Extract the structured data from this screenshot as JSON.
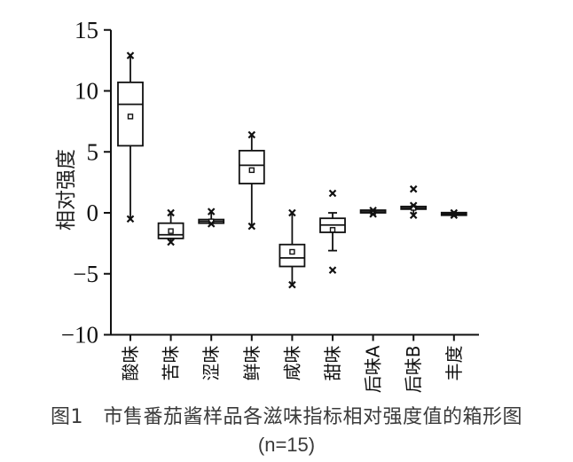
{
  "chart_data": {
    "type": "boxplot",
    "title": "",
    "xlabel": "",
    "ylabel": "相对强度",
    "ylim": [
      -10,
      15
    ],
    "yticks": [
      -10,
      -5,
      0,
      5,
      10,
      15
    ],
    "ytick_labels": [
      "−10",
      "−5",
      "0",
      "5",
      "10",
      "15"
    ],
    "grid": false,
    "legend": null,
    "categories": [
      "酸味",
      "苦味",
      "涩味",
      "鲜味",
      "咸味",
      "甜味",
      "后味A",
      "后味B",
      "丰度"
    ],
    "series": [
      {
        "name": "酸味",
        "whisker_low": -0.5,
        "q1": 5.5,
        "median": 8.9,
        "q3": 10.7,
        "whisker_high": 12.9,
        "mean": 7.9,
        "outliers": [],
        "whisker_markers": [
          "x",
          "x"
        ]
      },
      {
        "name": "苦味",
        "whisker_low": -2.4,
        "q1": -2.1,
        "median": -1.8,
        "q3": -0.85,
        "whisker_high": 0.0,
        "mean": -1.5,
        "outliers": [],
        "whisker_markers": [
          "x",
          "x"
        ]
      },
      {
        "name": "涩味",
        "whisker_low": -0.9,
        "q1": -0.85,
        "median": -0.7,
        "q3": -0.55,
        "whisker_high": 0.1,
        "mean": -0.7,
        "outliers": [],
        "whisker_markers": [
          "x",
          "x"
        ]
      },
      {
        "name": "鲜味",
        "whisker_low": -1.1,
        "q1": 2.4,
        "median": 3.9,
        "q3": 5.1,
        "whisker_high": 6.4,
        "mean": 3.5,
        "outliers": [],
        "whisker_markers": [
          "x",
          "x"
        ]
      },
      {
        "name": "咸味",
        "whisker_low": -5.9,
        "q1": -4.4,
        "median": -3.7,
        "q3": -2.6,
        "whisker_high": 0.0,
        "mean": -3.2,
        "outliers": [],
        "whisker_markers": [
          "x",
          "x"
        ]
      },
      {
        "name": "甜味",
        "whisker_low": -3.1,
        "q1": -1.6,
        "median": -1.0,
        "q3": -0.45,
        "whisker_high": 0.0,
        "mean": -1.4,
        "outliers": [
          1.6,
          -4.7
        ],
        "whisker_markers": [
          "cap",
          "cap"
        ]
      },
      {
        "name": "后味A",
        "whisker_low": -0.1,
        "q1": 0.0,
        "median": 0.05,
        "q3": 0.1,
        "whisker_high": 0.2,
        "mean": 0.05,
        "outliers": [],
        "whisker_markers": [
          "x",
          "x"
        ]
      },
      {
        "name": "后味B",
        "whisker_low": -0.2,
        "q1": 0.3,
        "median": 0.35,
        "q3": 0.45,
        "whisker_high": 0.6,
        "mean": 0.4,
        "outliers": [
          1.95
        ],
        "whisker_markers": [
          "x",
          "x"
        ]
      },
      {
        "name": "丰度",
        "whisker_low": -0.2,
        "q1": -0.2,
        "median": -0.1,
        "q3": -0.05,
        "whisker_high": 0.0,
        "mean": -0.1,
        "outliers": [],
        "whisker_markers": [
          "x",
          "x"
        ]
      }
    ]
  },
  "caption": {
    "line1": "图1　市售番茄酱样品各滋味指标相对强度值的箱形图",
    "line2": "(n=15)"
  }
}
